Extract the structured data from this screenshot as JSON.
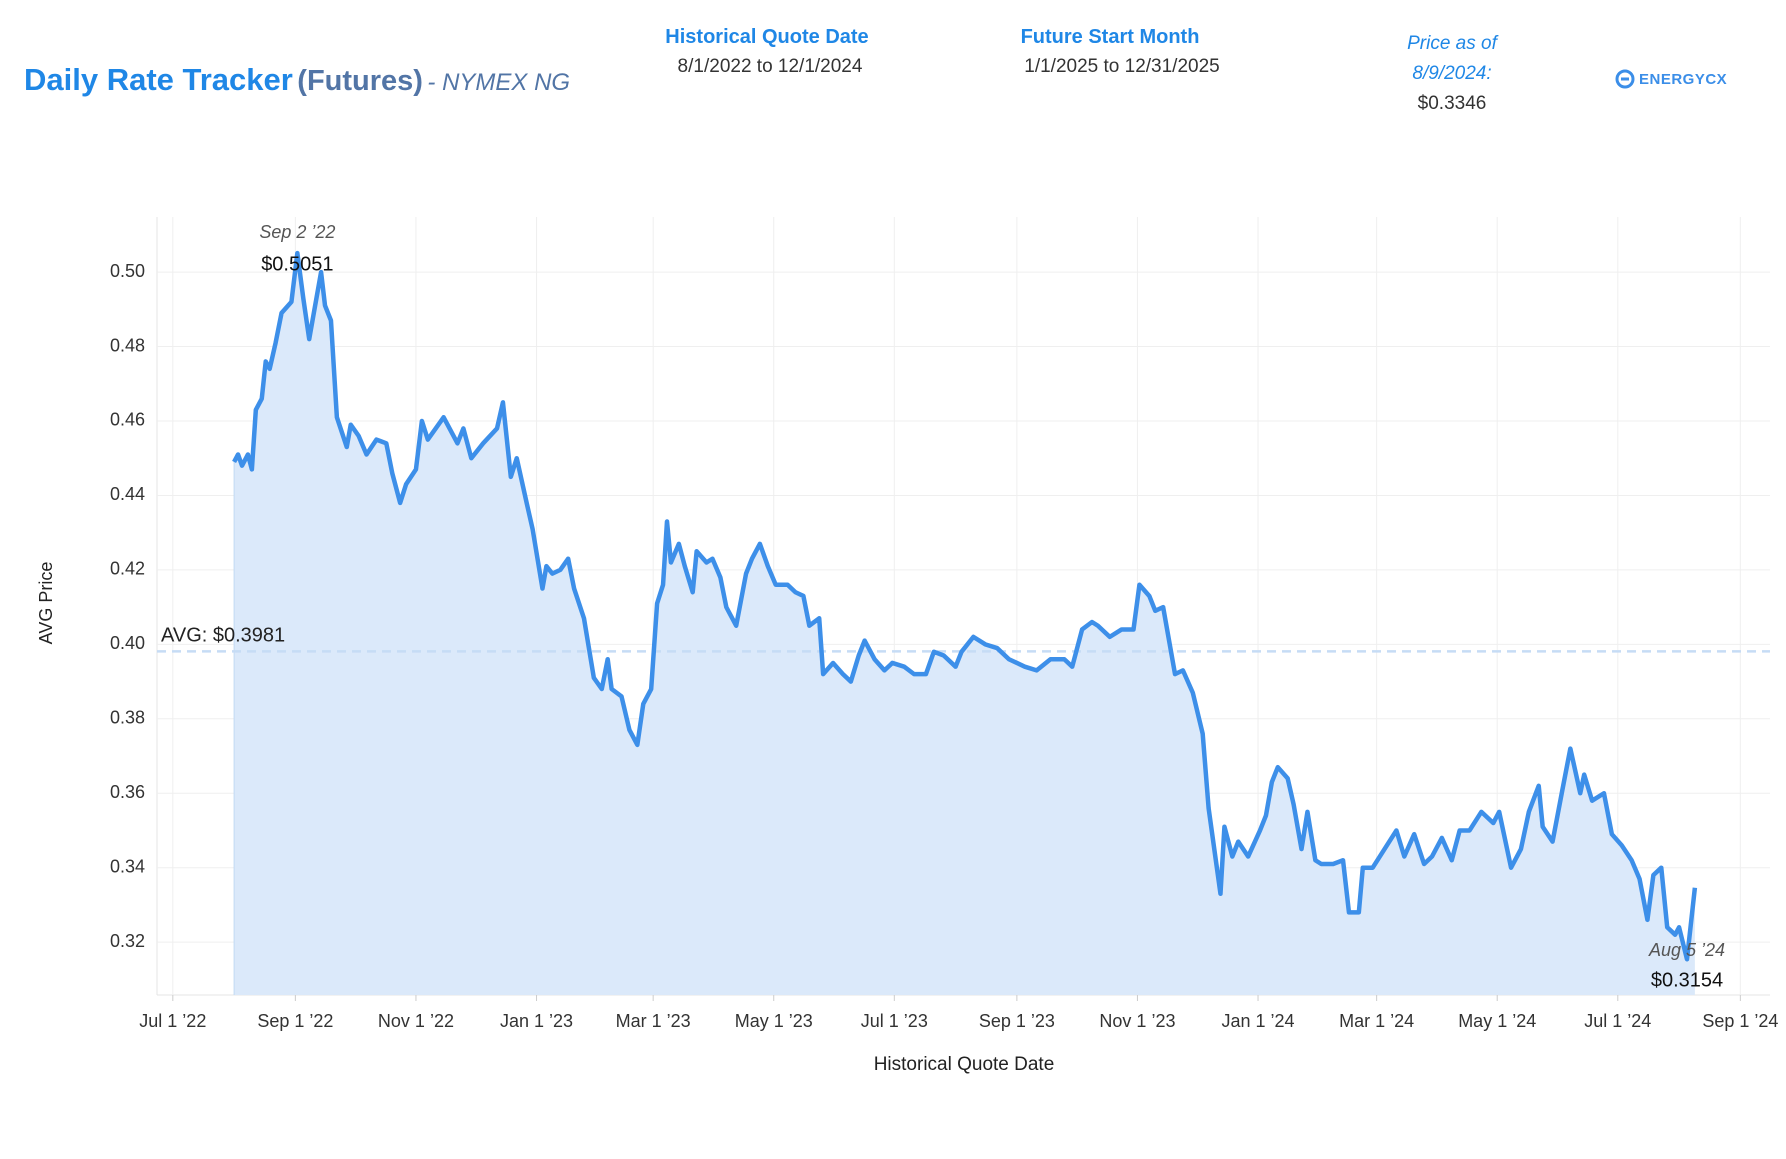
{
  "header": {
    "title": "Daily Rate Tracker",
    "title_suffix": "(Futures)",
    "title_market": "- NYMEX NG",
    "historical_label": "Historical Quote Date",
    "historical_range": "8/1/2022 to 12/1/2024",
    "future_label": "Future Start Month",
    "future_range": "1/1/2025 to 12/31/2025",
    "price_label_1": "Price as of",
    "price_label_2": "8/9/2024:",
    "price_value": "$0.3346",
    "logo": "ENERGYCX"
  },
  "chart_data": {
    "type": "area",
    "x_label": "Historical Quote Date",
    "y_label": "AVG Price",
    "color": "#3d8fe9",
    "fill": "#dbe9fa",
    "grid": true,
    "xlim": [
      "2022-06-23",
      "2024-09-16"
    ],
    "ylim": [
      0.3058,
      0.5148
    ],
    "xticks": [
      {
        "value": "2022-07-01",
        "label": "Jul 1 ’22"
      },
      {
        "value": "2022-09-01",
        "label": "Sep 1 ’22"
      },
      {
        "value": "2022-11-01",
        "label": "Nov 1 ’22"
      },
      {
        "value": "2023-01-01",
        "label": "Jan 1 ’23"
      },
      {
        "value": "2023-03-01",
        "label": "Mar 1 ’23"
      },
      {
        "value": "2023-05-01",
        "label": "May 1 ’23"
      },
      {
        "value": "2023-07-01",
        "label": "Jul 1 ’23"
      },
      {
        "value": "2023-09-01",
        "label": "Sep 1 ’23"
      },
      {
        "value": "2023-11-01",
        "label": "Nov 1 ’23"
      },
      {
        "value": "2024-01-01",
        "label": "Jan 1 ’24"
      },
      {
        "value": "2024-03-01",
        "label": "Mar 1 ’24"
      },
      {
        "value": "2024-05-01",
        "label": "May 1 ’24"
      },
      {
        "value": "2024-07-01",
        "label": "Jul 1 ’24"
      },
      {
        "value": "2024-09-01",
        "label": "Sep 1 ’24"
      }
    ],
    "yticks": [
      0.32,
      0.34,
      0.36,
      0.38,
      {
        "value": 0.4,
        "label": "0.40"
      },
      0.42,
      0.44,
      0.46,
      0.48,
      {
        "value": 0.5,
        "label": "0.50"
      }
    ],
    "reference_line": {
      "value": 0.3981,
      "label": "AVG: $0.3981"
    },
    "annotations": [
      {
        "x": "2022-09-02",
        "date_label": "Sep 2 ’22",
        "value": 0.5051,
        "label": "$0.5051"
      },
      {
        "x": "2024-08-05",
        "date_label": "Aug 5 ’24",
        "value": 0.3154,
        "label": "$0.3154"
      }
    ],
    "x": [
      "2022-08-01",
      "2022-08-03",
      "2022-08-05",
      "2022-08-08",
      "2022-08-10",
      "2022-08-12",
      "2022-08-15",
      "2022-08-17",
      "2022-08-19",
      "2022-08-22",
      "2022-08-25",
      "2022-08-30",
      "2022-09-02",
      "2022-09-05",
      "2022-09-08",
      "2022-09-10",
      "2022-09-14",
      "2022-09-16",
      "2022-09-19",
      "2022-09-22",
      "2022-09-27",
      "2022-09-29",
      "2022-10-03",
      "2022-10-07",
      "2022-10-12",
      "2022-10-17",
      "2022-10-20",
      "2022-10-24",
      "2022-10-27",
      "2022-11-01",
      "2022-11-04",
      "2022-11-07",
      "2022-11-11",
      "2022-11-15",
      "2022-11-18",
      "2022-11-22",
      "2022-11-25",
      "2022-11-29",
      "2022-12-05",
      "2022-12-12",
      "2022-12-15",
      "2022-12-19",
      "2022-12-22",
      "2022-12-27",
      "2022-12-30",
      "2023-01-04",
      "2023-01-06",
      "2023-01-09",
      "2023-01-13",
      "2023-01-17",
      "2023-01-20",
      "2023-01-25",
      "2023-01-30",
      "2023-02-03",
      "2023-02-06",
      "2023-02-08",
      "2023-02-13",
      "2023-02-17",
      "2023-02-21",
      "2023-02-24",
      "2023-02-28",
      "2023-03-03",
      "2023-03-06",
      "2023-03-08",
      "2023-03-10",
      "2023-03-14",
      "2023-03-17",
      "2023-03-21",
      "2023-03-23",
      "2023-03-28",
      "2023-03-31",
      "2023-04-04",
      "2023-04-07",
      "2023-04-12",
      "2023-04-17",
      "2023-04-20",
      "2023-04-24",
      "2023-04-28",
      "2023-05-02",
      "2023-05-08",
      "2023-05-12",
      "2023-05-16",
      "2023-05-19",
      "2023-05-24",
      "2023-05-26",
      "2023-05-31",
      "2023-06-05",
      "2023-06-09",
      "2023-06-13",
      "2023-06-16",
      "2023-06-21",
      "2023-06-26",
      "2023-06-30",
      "2023-07-06",
      "2023-07-11",
      "2023-07-17",
      "2023-07-21",
      "2023-07-26",
      "2023-08-01",
      "2023-08-04",
      "2023-08-10",
      "2023-08-16",
      "2023-08-22",
      "2023-08-28",
      "2023-09-05",
      "2023-09-11",
      "2023-09-18",
      "2023-09-25",
      "2023-09-29",
      "2023-10-04",
      "2023-10-09",
      "2023-10-12",
      "2023-10-18",
      "2023-10-24",
      "2023-10-30",
      "2023-11-02",
      "2023-11-07",
      "2023-11-10",
      "2023-11-14",
      "2023-11-17",
      "2023-11-20",
      "2023-11-24",
      "2023-11-29",
      "2023-12-04",
      "2023-12-07",
      "2023-12-13",
      "2023-12-15",
      "2023-12-19",
      "2023-12-22",
      "2023-12-27",
      "2024-01-02",
      "2024-01-05",
      "2024-01-08",
      "2024-01-11",
      "2024-01-16",
      "2024-01-19",
      "2024-01-23",
      "2024-01-26",
      "2024-01-30",
      "2024-02-02",
      "2024-02-08",
      "2024-02-13",
      "2024-02-16",
      "2024-02-21",
      "2024-02-23",
      "2024-02-28",
      "2024-03-05",
      "2024-03-11",
      "2024-03-15",
      "2024-03-20",
      "2024-03-25",
      "2024-03-29",
      "2024-04-03",
      "2024-04-08",
      "2024-04-12",
      "2024-04-17",
      "2024-04-23",
      "2024-04-29",
      "2024-05-02",
      "2024-05-08",
      "2024-05-13",
      "2024-05-17",
      "2024-05-22",
      "2024-05-24",
      "2024-05-29",
      "2024-06-03",
      "2024-06-07",
      "2024-06-12",
      "2024-06-14",
      "2024-06-18",
      "2024-06-24",
      "2024-06-28",
      "2024-07-03",
      "2024-07-08",
      "2024-07-12",
      "2024-07-16",
      "2024-07-19",
      "2024-07-23",
      "2024-07-26",
      "2024-07-30",
      "2024-08-01",
      "2024-08-05",
      "2024-08-07",
      "2024-08-09"
    ],
    "values": [
      0.449,
      0.451,
      0.448,
      0.451,
      0.447,
      0.463,
      0.466,
      0.476,
      0.474,
      0.481,
      0.489,
      0.492,
      0.5051,
      0.493,
      0.482,
      0.488,
      0.5,
      0.491,
      0.487,
      0.461,
      0.453,
      0.459,
      0.456,
      0.451,
      0.455,
      0.454,
      0.446,
      0.438,
      0.443,
      0.447,
      0.46,
      0.455,
      0.458,
      0.461,
      0.458,
      0.454,
      0.458,
      0.45,
      0.454,
      0.458,
      0.465,
      0.445,
      0.45,
      0.438,
      0.431,
      0.415,
      0.421,
      0.419,
      0.42,
      0.423,
      0.415,
      0.407,
      0.391,
      0.388,
      0.396,
      0.388,
      0.386,
      0.377,
      0.373,
      0.384,
      0.388,
      0.411,
      0.416,
      0.433,
      0.422,
      0.427,
      0.421,
      0.414,
      0.425,
      0.422,
      0.423,
      0.418,
      0.41,
      0.405,
      0.419,
      0.423,
      0.427,
      0.421,
      0.416,
      0.416,
      0.414,
      0.413,
      0.405,
      0.407,
      0.392,
      0.395,
      0.392,
      0.39,
      0.397,
      0.401,
      0.396,
      0.393,
      0.395,
      0.394,
      0.392,
      0.392,
      0.398,
      0.397,
      0.394,
      0.398,
      0.402,
      0.4,
      0.399,
      0.396,
      0.394,
      0.393,
      0.396,
      0.396,
      0.394,
      0.404,
      0.406,
      0.405,
      0.402,
      0.404,
      0.404,
      0.416,
      0.413,
      0.409,
      0.41,
      0.401,
      0.392,
      0.393,
      0.387,
      0.376,
      0.356,
      0.333,
      0.351,
      0.343,
      0.347,
      0.343,
      0.35,
      0.354,
      0.363,
      0.367,
      0.364,
      0.357,
      0.345,
      0.355,
      0.342,
      0.341,
      0.341,
      0.342,
      0.328,
      0.328,
      0.34,
      0.34,
      0.345,
      0.35,
      0.343,
      0.349,
      0.341,
      0.343,
      0.348,
      0.342,
      0.35,
      0.35,
      0.355,
      0.352,
      0.355,
      0.34,
      0.345,
      0.355,
      0.362,
      0.351,
      0.347,
      0.361,
      0.372,
      0.36,
      0.365,
      0.358,
      0.36,
      0.349,
      0.346,
      0.342,
      0.337,
      0.326,
      0.338,
      0.34,
      0.324,
      0.322,
      0.324,
      0.3154,
      0.325,
      0.3346
    ]
  }
}
